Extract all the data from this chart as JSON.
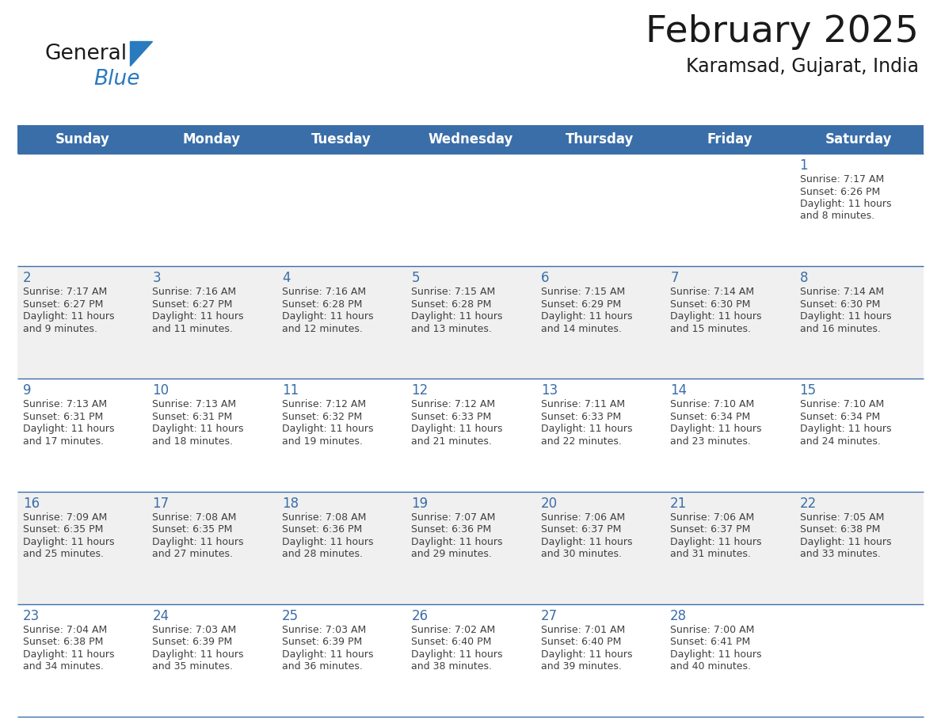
{
  "title": "February 2025",
  "subtitle": "Karamsad, Gujarat, India",
  "header_color": "#3a6ea8",
  "header_text_color": "#FFFFFF",
  "header_days": [
    "Sunday",
    "Monday",
    "Tuesday",
    "Wednesday",
    "Thursday",
    "Friday",
    "Saturday"
  ],
  "bg_color": "#FFFFFF",
  "cell_alt_color": "#F0F0F0",
  "border_color": "#3a6ea8",
  "day_number_color": "#3a6ea8",
  "text_color": "#404040",
  "logo_general_color": "#1a1a1a",
  "logo_blue_color": "#2a7abf",
  "logo_triangle_color": "#2a7abf",
  "title_color": "#1a1a1a",
  "calendar_data": [
    [
      null,
      null,
      null,
      null,
      null,
      null,
      {
        "day": 1,
        "sunrise": "7:17 AM",
        "sunset": "6:26 PM",
        "daylight_h": "11 hours",
        "daylight_m": "and 8 minutes."
      }
    ],
    [
      {
        "day": 2,
        "sunrise": "7:17 AM",
        "sunset": "6:27 PM",
        "daylight_h": "11 hours",
        "daylight_m": "and 9 minutes."
      },
      {
        "day": 3,
        "sunrise": "7:16 AM",
        "sunset": "6:27 PM",
        "daylight_h": "11 hours",
        "daylight_m": "and 11 minutes."
      },
      {
        "day": 4,
        "sunrise": "7:16 AM",
        "sunset": "6:28 PM",
        "daylight_h": "11 hours",
        "daylight_m": "and 12 minutes."
      },
      {
        "day": 5,
        "sunrise": "7:15 AM",
        "sunset": "6:28 PM",
        "daylight_h": "11 hours",
        "daylight_m": "and 13 minutes."
      },
      {
        "day": 6,
        "sunrise": "7:15 AM",
        "sunset": "6:29 PM",
        "daylight_h": "11 hours",
        "daylight_m": "and 14 minutes."
      },
      {
        "day": 7,
        "sunrise": "7:14 AM",
        "sunset": "6:30 PM",
        "daylight_h": "11 hours",
        "daylight_m": "and 15 minutes."
      },
      {
        "day": 8,
        "sunrise": "7:14 AM",
        "sunset": "6:30 PM",
        "daylight_h": "11 hours",
        "daylight_m": "and 16 minutes."
      }
    ],
    [
      {
        "day": 9,
        "sunrise": "7:13 AM",
        "sunset": "6:31 PM",
        "daylight_h": "11 hours",
        "daylight_m": "and 17 minutes."
      },
      {
        "day": 10,
        "sunrise": "7:13 AM",
        "sunset": "6:31 PM",
        "daylight_h": "11 hours",
        "daylight_m": "and 18 minutes."
      },
      {
        "day": 11,
        "sunrise": "7:12 AM",
        "sunset": "6:32 PM",
        "daylight_h": "11 hours",
        "daylight_m": "and 19 minutes."
      },
      {
        "day": 12,
        "sunrise": "7:12 AM",
        "sunset": "6:33 PM",
        "daylight_h": "11 hours",
        "daylight_m": "and 21 minutes."
      },
      {
        "day": 13,
        "sunrise": "7:11 AM",
        "sunset": "6:33 PM",
        "daylight_h": "11 hours",
        "daylight_m": "and 22 minutes."
      },
      {
        "day": 14,
        "sunrise": "7:10 AM",
        "sunset": "6:34 PM",
        "daylight_h": "11 hours",
        "daylight_m": "and 23 minutes."
      },
      {
        "day": 15,
        "sunrise": "7:10 AM",
        "sunset": "6:34 PM",
        "daylight_h": "11 hours",
        "daylight_m": "and 24 minutes."
      }
    ],
    [
      {
        "day": 16,
        "sunrise": "7:09 AM",
        "sunset": "6:35 PM",
        "daylight_h": "11 hours",
        "daylight_m": "and 25 minutes."
      },
      {
        "day": 17,
        "sunrise": "7:08 AM",
        "sunset": "6:35 PM",
        "daylight_h": "11 hours",
        "daylight_m": "and 27 minutes."
      },
      {
        "day": 18,
        "sunrise": "7:08 AM",
        "sunset": "6:36 PM",
        "daylight_h": "11 hours",
        "daylight_m": "and 28 minutes."
      },
      {
        "day": 19,
        "sunrise": "7:07 AM",
        "sunset": "6:36 PM",
        "daylight_h": "11 hours",
        "daylight_m": "and 29 minutes."
      },
      {
        "day": 20,
        "sunrise": "7:06 AM",
        "sunset": "6:37 PM",
        "daylight_h": "11 hours",
        "daylight_m": "and 30 minutes."
      },
      {
        "day": 21,
        "sunrise": "7:06 AM",
        "sunset": "6:37 PM",
        "daylight_h": "11 hours",
        "daylight_m": "and 31 minutes."
      },
      {
        "day": 22,
        "sunrise": "7:05 AM",
        "sunset": "6:38 PM",
        "daylight_h": "11 hours",
        "daylight_m": "and 33 minutes."
      }
    ],
    [
      {
        "day": 23,
        "sunrise": "7:04 AM",
        "sunset": "6:38 PM",
        "daylight_h": "11 hours",
        "daylight_m": "and 34 minutes."
      },
      {
        "day": 24,
        "sunrise": "7:03 AM",
        "sunset": "6:39 PM",
        "daylight_h": "11 hours",
        "daylight_m": "and 35 minutes."
      },
      {
        "day": 25,
        "sunrise": "7:03 AM",
        "sunset": "6:39 PM",
        "daylight_h": "11 hours",
        "daylight_m": "and 36 minutes."
      },
      {
        "day": 26,
        "sunrise": "7:02 AM",
        "sunset": "6:40 PM",
        "daylight_h": "11 hours",
        "daylight_m": "and 38 minutes."
      },
      {
        "day": 27,
        "sunrise": "7:01 AM",
        "sunset": "6:40 PM",
        "daylight_h": "11 hours",
        "daylight_m": "and 39 minutes."
      },
      {
        "day": 28,
        "sunrise": "7:00 AM",
        "sunset": "6:41 PM",
        "daylight_h": "11 hours",
        "daylight_m": "and 40 minutes."
      },
      null
    ]
  ]
}
